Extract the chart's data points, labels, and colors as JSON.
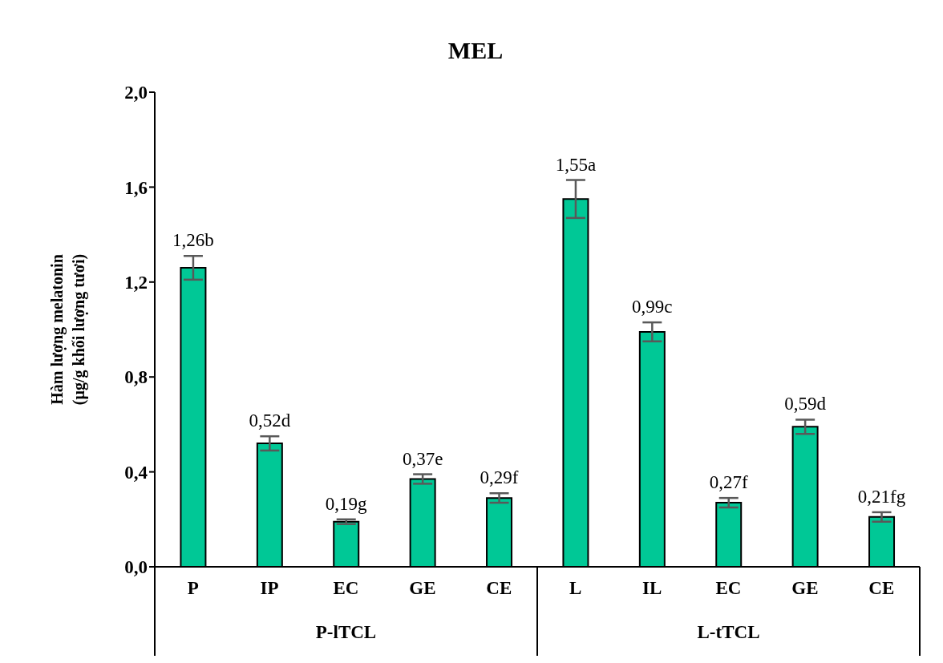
{
  "chart_data": {
    "type": "bar",
    "title": "MEL",
    "ylabel": "Hàm lượng melatonin\n(µg/g khối lượng tươi)",
    "categories": [
      "P",
      "IP",
      "EC",
      "GE",
      "CE",
      "L",
      "IL",
      "EC",
      "GE",
      "CE"
    ],
    "values": [
      1.26,
      0.52,
      0.19,
      0.37,
      0.29,
      1.55,
      0.99,
      0.27,
      0.59,
      0.21
    ],
    "errors": [
      0.05,
      0.03,
      0.01,
      0.02,
      0.02,
      0.08,
      0.04,
      0.02,
      0.03,
      0.02
    ],
    "value_labels": [
      "1,26b",
      "0,52d",
      "0,19g",
      "0,37e",
      "0,29f",
      "1,55a",
      "0,99c",
      "0,27f",
      "0,59d",
      "0,21fg"
    ],
    "color": "#00c896",
    "ylim": [
      0,
      2
    ],
    "yticks": [
      {
        "value": 0,
        "label": "0,0"
      },
      {
        "value": 0.4,
        "label": "0,4"
      },
      {
        "value": 0.8,
        "label": "0,8"
      },
      {
        "value": 1.2,
        "label": "1,2"
      },
      {
        "value": 1.6,
        "label": "1,6"
      },
      {
        "value": 2,
        "label": "2,0"
      }
    ],
    "annotations": [
      "P-lTCL",
      "L-tTCL"
    ],
    "grid": false,
    "legend": false
  }
}
